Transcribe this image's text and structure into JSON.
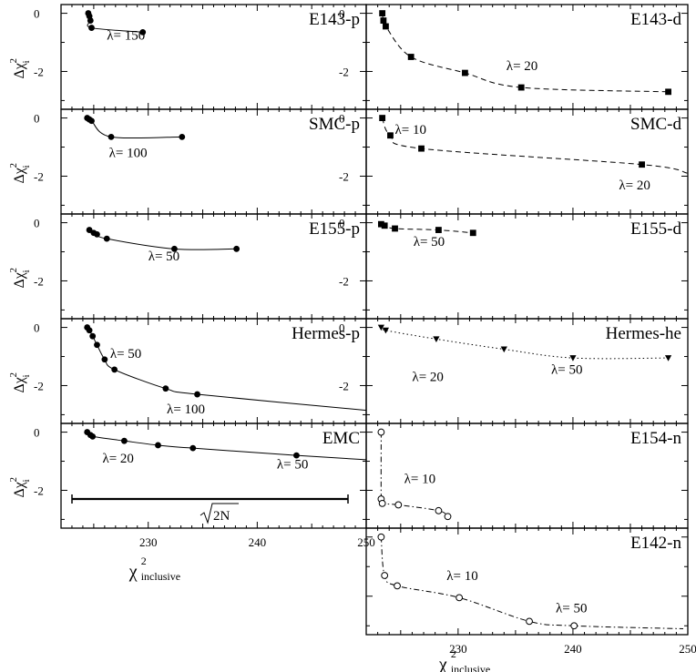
{
  "chart_data": {
    "type": "scatter",
    "grid": false,
    "x_axis_label": {
      "symbol": "χ",
      "sup": "2",
      "sub": "inclusive"
    },
    "y_axis_label": {
      "symbol": "Δχ",
      "sup": "2",
      "sub": "i"
    },
    "x_ticks": [
      "230",
      "240",
      "250"
    ],
    "xlim": [
      222,
      250
    ],
    "scale_bar_label": "2N",
    "panels": [
      {
        "id": "e143-p",
        "title": "E143-p",
        "col": 0,
        "row": 0,
        "marker": "circle-filled",
        "line": "solid",
        "ylim": [
          -3.3,
          0.3
        ],
        "ytick_labels": [
          "0",
          "-2"
        ],
        "points": [
          [
            224.5,
            0.0
          ],
          [
            224.6,
            -0.1
          ],
          [
            224.7,
            -0.25
          ],
          [
            224.8,
            -0.5
          ],
          [
            229.5,
            -0.65
          ]
        ],
        "labels": [
          {
            "text": "λ= 150",
            "x": 226.2,
            "y": -0.9
          }
        ]
      },
      {
        "id": "e143-d",
        "title": "E143-d",
        "col": 1,
        "row": 0,
        "marker": "square-filled",
        "line": "dashed",
        "ylim": [
          -3.3,
          0.3
        ],
        "ytick_labels": [
          "0",
          "-2"
        ],
        "points": [
          [
            223.4,
            0.0
          ],
          [
            223.5,
            -0.25
          ],
          [
            223.7,
            -0.45
          ],
          [
            225.9,
            -1.5
          ],
          [
            230.6,
            -2.05
          ],
          [
            235.5,
            -2.55
          ],
          [
            248.3,
            -2.7
          ]
        ],
        "labels": [
          {
            "text": "λ= 20",
            "x": 234.2,
            "y": -1.95
          }
        ]
      },
      {
        "id": "smc-p",
        "title": "SMC-p",
        "col": 0,
        "row": 1,
        "marker": "circle-filled",
        "line": "solid",
        "ylim": [
          -3.3,
          0.3
        ],
        "ytick_labels": [
          "0",
          "-2"
        ],
        "points": [
          [
            224.4,
            0.0
          ],
          [
            224.6,
            -0.05
          ],
          [
            224.8,
            -0.1
          ],
          [
            226.6,
            -0.65
          ],
          [
            233.1,
            -0.65
          ]
        ],
        "labels": [
          {
            "text": "λ= 100",
            "x": 226.4,
            "y": -1.35
          }
        ]
      },
      {
        "id": "smc-d",
        "title": "SMC-d",
        "col": 1,
        "row": 1,
        "marker": "square-filled",
        "line": "dashed",
        "ylim": [
          -3.3,
          0.3
        ],
        "ytick_labels": [
          "0",
          "-2"
        ],
        "points": [
          [
            223.4,
            0.0
          ],
          [
            224.1,
            -0.6
          ],
          [
            226.8,
            -1.05
          ],
          [
            246.0,
            -1.6
          ]
        ],
        "labels": [
          {
            "text": "λ= 10",
            "x": 224.5,
            "y": -0.55
          },
          {
            "text": "λ= 20",
            "x": 244.0,
            "y": -2.45
          }
        ]
      },
      {
        "id": "e155-p",
        "title": "E155-p",
        "col": 0,
        "row": 2,
        "marker": "circle-filled",
        "line": "solid",
        "ylim": [
          -3.3,
          0.3
        ],
        "ytick_labels": [
          "0",
          "-2"
        ],
        "points": [
          [
            224.6,
            -0.25
          ],
          [
            225.0,
            -0.35
          ],
          [
            225.3,
            -0.4
          ],
          [
            226.2,
            -0.55
          ],
          [
            232.4,
            -0.9
          ],
          [
            238.1,
            -0.9
          ]
        ],
        "labels": [
          {
            "text": "λ= 50",
            "x": 230.0,
            "y": -1.3
          }
        ]
      },
      {
        "id": "e155-d",
        "title": "E155-d",
        "col": 1,
        "row": 2,
        "marker": "square-filled",
        "line": "dashed",
        "ylim": [
          -3.3,
          0.3
        ],
        "ytick_labels": [
          "0",
          "-2"
        ],
        "points": [
          [
            223.3,
            -0.05
          ],
          [
            223.6,
            -0.1
          ],
          [
            224.5,
            -0.2
          ],
          [
            228.3,
            -0.25
          ],
          [
            231.3,
            -0.35
          ]
        ],
        "labels": [
          {
            "text": "λ= 50",
            "x": 226.1,
            "y": -0.8
          }
        ]
      },
      {
        "id": "hermes-p",
        "title": "Hermes-p",
        "col": 0,
        "row": 3,
        "marker": "circle-filled",
        "line": "solid",
        "ylim": [
          -3.3,
          0.3
        ],
        "ytick_labels": [
          "0",
          "-2"
        ],
        "points": [
          [
            224.4,
            0.0
          ],
          [
            224.6,
            -0.1
          ],
          [
            224.9,
            -0.3
          ],
          [
            225.3,
            -0.6
          ],
          [
            226.0,
            -1.1
          ],
          [
            226.9,
            -1.45
          ],
          [
            231.6,
            -2.1
          ],
          [
            234.5,
            -2.3
          ]
        ],
        "labels": [
          {
            "text": "λ= 50",
            "x": 226.5,
            "y": -1.05
          },
          {
            "text": "λ= 100",
            "x": 231.7,
            "y": -2.95
          }
        ]
      },
      {
        "id": "hermes-he",
        "title": "Hermes-he",
        "col": 1,
        "row": 3,
        "marker": "triangle-down-filled",
        "line": "dotted",
        "ylim": [
          -3.3,
          0.3
        ],
        "ytick_labels": [
          "0",
          "-2"
        ],
        "points": [
          [
            223.3,
            0.0
          ],
          [
            223.7,
            -0.1
          ],
          [
            228.1,
            -0.4
          ],
          [
            234.0,
            -0.75
          ],
          [
            240.0,
            -1.05
          ],
          [
            248.3,
            -1.05
          ]
        ],
        "labels": [
          {
            "text": "λ= 20",
            "x": 226.0,
            "y": -1.85
          },
          {
            "text": "λ= 50",
            "x": 238.1,
            "y": -1.6
          }
        ]
      },
      {
        "id": "emc",
        "title": "EMC",
        "col": 0,
        "row": 4,
        "marker": "circle-filled",
        "line": "solid",
        "ylim": [
          -3.3,
          0.3
        ],
        "ytick_labels": [
          "0",
          "-2"
        ],
        "points": [
          [
            224.4,
            0.0
          ],
          [
            224.7,
            -0.1
          ],
          [
            224.9,
            -0.15
          ],
          [
            227.8,
            -0.3
          ],
          [
            230.9,
            -0.45
          ],
          [
            234.1,
            -0.55
          ],
          [
            243.6,
            -0.8
          ]
        ],
        "labels": [
          {
            "text": "λ= 20",
            "x": 225.8,
            "y": -1.05
          },
          {
            "text": "λ= 50",
            "x": 241.8,
            "y": -1.25
          }
        ]
      },
      {
        "id": "e154-n",
        "title": "E154-n",
        "col": 1,
        "row": 4,
        "marker": "circle-open",
        "line": "dashdot",
        "ylim": [
          -3.3,
          0.3
        ],
        "ytick_labels": [],
        "points": [
          [
            223.3,
            0.0
          ],
          [
            223.3,
            -2.3
          ],
          [
            223.4,
            -2.45
          ],
          [
            224.8,
            -2.5
          ],
          [
            228.3,
            -2.7
          ],
          [
            229.1,
            -2.9
          ]
        ],
        "labels": [
          {
            "text": "λ= 10",
            "x": 225.3,
            "y": -1.75
          }
        ]
      },
      {
        "id": "e142-n",
        "title": "E142-n",
        "col": 1,
        "row": 5,
        "marker": "circle-open",
        "line": "dashdot",
        "ylim": [
          -3.3,
          0.3
        ],
        "ytick_labels": [],
        "points": [
          [
            223.3,
            0.0
          ],
          [
            223.6,
            -1.3
          ],
          [
            224.7,
            -1.65
          ],
          [
            230.1,
            -2.05
          ],
          [
            236.2,
            -2.85
          ],
          [
            240.1,
            -3.0
          ]
        ],
        "labels": [
          {
            "text": "λ= 10",
            "x": 229.0,
            "y": -1.45
          },
          {
            "text": "λ= 50",
            "x": 238.5,
            "y": -2.55
          }
        ]
      }
    ]
  }
}
